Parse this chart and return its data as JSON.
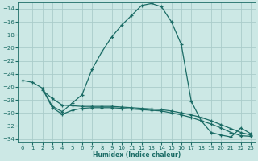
{
  "xlabel": "Humidex (Indice chaleur)",
  "background_color": "#cce8e5",
  "grid_color": "#aaccca",
  "line_color": "#1a6b65",
  "xlim": [
    -0.5,
    23.5
  ],
  "ylim": [
    -34.5,
    -13.0
  ],
  "yticks": [
    -14,
    -16,
    -18,
    -20,
    -22,
    -24,
    -26,
    -28,
    -30,
    -32,
    -34
  ],
  "xticks": [
    0,
    1,
    2,
    3,
    4,
    5,
    6,
    7,
    8,
    9,
    10,
    11,
    12,
    13,
    14,
    15,
    16,
    17,
    18,
    19,
    20,
    21,
    22,
    23
  ],
  "series": [
    {
      "x": [
        0,
        1,
        2,
        3,
        4,
        5,
        6,
        7,
        8,
        9,
        10,
        11,
        12,
        13,
        14,
        15,
        16,
        17,
        18,
        19,
        20,
        21,
        22,
        23
      ],
      "y": [
        -25.0,
        -25.3,
        -26.2,
        -29.0,
        -29.8,
        -28.5,
        -27.2,
        -23.3,
        -20.6,
        -18.3,
        -16.5,
        -15.0,
        -13.5,
        -13.2,
        -13.7,
        -16.0,
        -19.5,
        -28.2,
        -31.2,
        -33.0,
        -33.4,
        -33.7,
        -32.3,
        -33.2
      ]
    },
    {
      "x": [
        2,
        3,
        4,
        5,
        6,
        7,
        8,
        9,
        10,
        11,
        12,
        13,
        14,
        15,
        16,
        17,
        18,
        19,
        20,
        21,
        22,
        23
      ],
      "y": [
        -26.5,
        -27.8,
        -28.8,
        -28.9,
        -29.0,
        -29.0,
        -29.0,
        -29.0,
        -29.1,
        -29.2,
        -29.3,
        -29.4,
        -29.5,
        -29.7,
        -30.0,
        -30.3,
        -30.7,
        -31.2,
        -31.8,
        -32.4,
        -33.0,
        -33.4
      ]
    },
    {
      "x": [
        2,
        3,
        4,
        5,
        6,
        7,
        8,
        9,
        10,
        11,
        12,
        13,
        14,
        15,
        16,
        17,
        18,
        19,
        20,
        21,
        22,
        23
      ],
      "y": [
        -26.3,
        -29.2,
        -30.2,
        -29.6,
        -29.3,
        -29.2,
        -29.2,
        -29.2,
        -29.3,
        -29.4,
        -29.5,
        -29.6,
        -29.7,
        -30.0,
        -30.3,
        -30.7,
        -31.2,
        -31.7,
        -32.3,
        -33.0,
        -33.5,
        -33.6
      ]
    }
  ]
}
